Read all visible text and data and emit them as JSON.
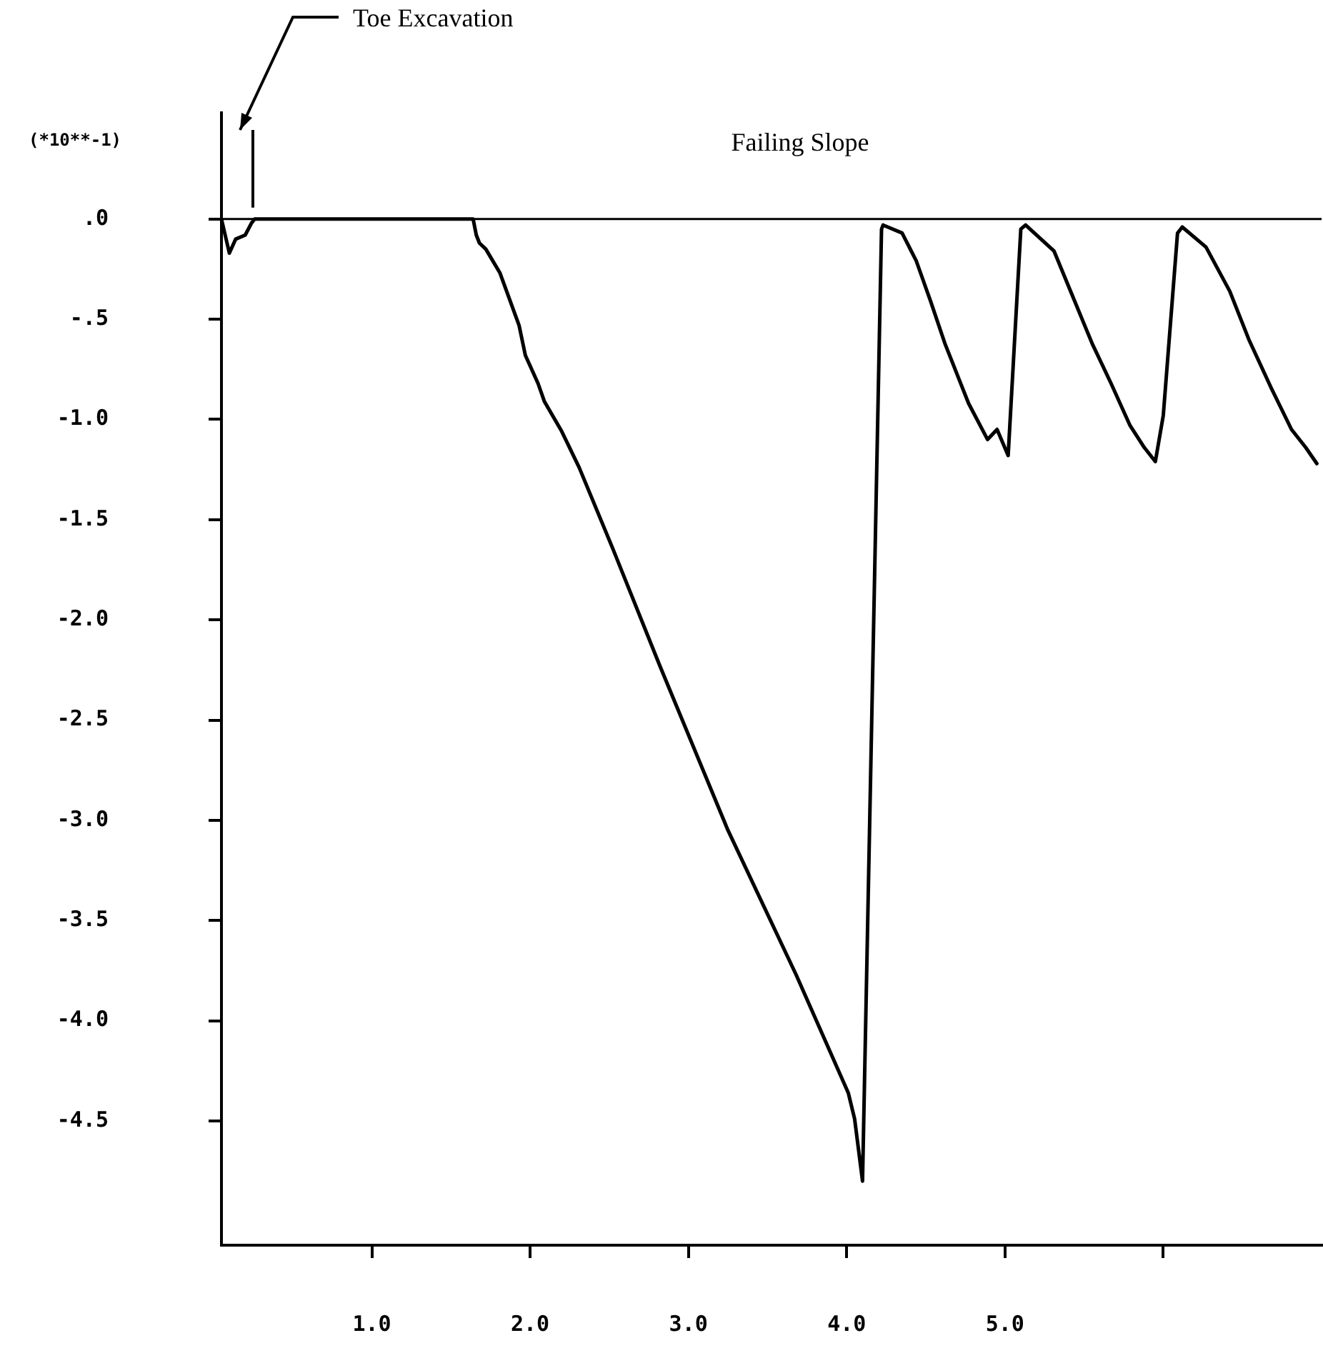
{
  "chart_data": {
    "type": "line",
    "title": "Failing Slope",
    "ylabel": "(*10**-1)",
    "annotations": [
      "Toe Excavation"
    ],
    "xlim": [
      0.05,
      7.0
    ],
    "ylim": [
      -5.12,
      0.53
    ],
    "xticks": [
      {
        "value": 1,
        "label": "1.0"
      },
      {
        "value": 2,
        "label": "2.0"
      },
      {
        "value": 3,
        "label": "3.0"
      },
      {
        "value": 4,
        "label": "4.0"
      },
      {
        "value": 5,
        "label": "5.0"
      },
      {
        "value": 6,
        "label": null
      }
    ],
    "yticks": [
      {
        "value": 0,
        "label": ".0"
      },
      {
        "value": -0.5,
        "label": "-.5"
      },
      {
        "value": -1,
        "label": "-1.0"
      },
      {
        "value": -1.5,
        "label": "-1.5"
      },
      {
        "value": -2,
        "label": "-2.0"
      },
      {
        "value": -2.5,
        "label": "-2.5"
      },
      {
        "value": -3,
        "label": "-3.0"
      },
      {
        "value": -3.5,
        "label": "-3.5"
      },
      {
        "value": -4,
        "label": "-4.0"
      },
      {
        "value": -4.5,
        "label": "-4.5"
      }
    ],
    "ref_lines": [
      {
        "axis": "y",
        "value": 0,
        "color": "#000000"
      }
    ],
    "grid": false,
    "legend": false,
    "marker": "none",
    "line_style": "solid",
    "series": [
      {
        "color": "#000000",
        "x": [
          0.05,
          0.1,
          0.14,
          0.2,
          0.24,
          0.26,
          1.0,
          1.64,
          1.66,
          1.68,
          1.72,
          1.81,
          1.93,
          1.97,
          2.05,
          2.09,
          2.2,
          2.31,
          2.52,
          2.82,
          3.25,
          3.68,
          4.01,
          4.05,
          4.1,
          4.22,
          4.23,
          4.35,
          4.44,
          4.53,
          4.62,
          4.71,
          4.77,
          4.89,
          4.95,
          5.02,
          5.1,
          5.13,
          5.31,
          5.43,
          5.55,
          5.67,
          5.79,
          5.88,
          5.95,
          6.0,
          6.09,
          6.12,
          6.27,
          6.42,
          6.54,
          6.68,
          6.81,
          6.9,
          6.97
        ],
        "values": [
          0,
          -0.17,
          -0.1,
          -0.08,
          -0.02,
          0,
          0,
          0,
          -0.08,
          -0.12,
          -0.15,
          -0.27,
          -0.53,
          -0.68,
          -0.82,
          -0.91,
          -1.06,
          -1.24,
          -1.64,
          -2.23,
          -3.05,
          -3.77,
          -4.36,
          -4.49,
          -4.8,
          -0.05,
          -0.03,
          -0.07,
          -0.21,
          -0.41,
          -0.62,
          -0.8,
          -0.92,
          -1.1,
          -1.05,
          -1.18,
          -0.05,
          -0.03,
          -0.16,
          -0.39,
          -0.62,
          -0.82,
          -1.03,
          -1.14,
          -1.21,
          -0.98,
          -0.07,
          -0.04,
          -0.14,
          -0.36,
          -0.6,
          -0.84,
          -1.05,
          -1.14,
          -1.22
        ]
      }
    ]
  }
}
